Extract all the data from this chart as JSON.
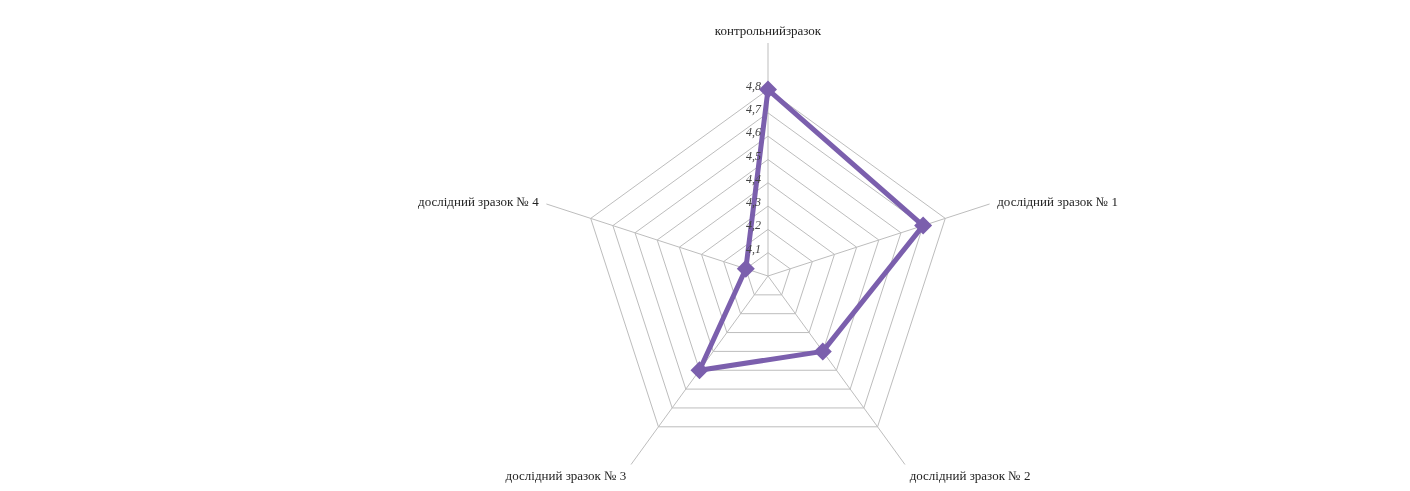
{
  "chart_data": {
    "type": "radar",
    "categories": [
      "контрольнийзразок",
      "дослідний зразок № 1",
      "дослідний зразок № 2",
      "дослідний зразок № 3",
      "дослідний зразок № 4"
    ],
    "series": [
      {
        "color": "#7b5fad",
        "values": [
          4.8,
          4.7,
          4.4,
          4.5,
          4.1
        ]
      }
    ],
    "ylim": [
      4,
      4.8
    ],
    "yticks": [
      {
        "value": 4.1,
        "label": "4,1"
      },
      {
        "value": 4.2,
        "label": "4,2"
      },
      {
        "value": 4.3,
        "label": "4,3"
      },
      {
        "value": 4.4,
        "label": "4,4"
      },
      {
        "value": 4.5,
        "label": "4,5"
      },
      {
        "value": 4.6,
        "label": "4,6"
      },
      {
        "value": 4.7,
        "label": "4,7"
      },
      {
        "value": 4.8,
        "label": "4,8"
      }
    ],
    "grid": true,
    "legend": false,
    "marker": "diamond",
    "line_style": "solid"
  }
}
